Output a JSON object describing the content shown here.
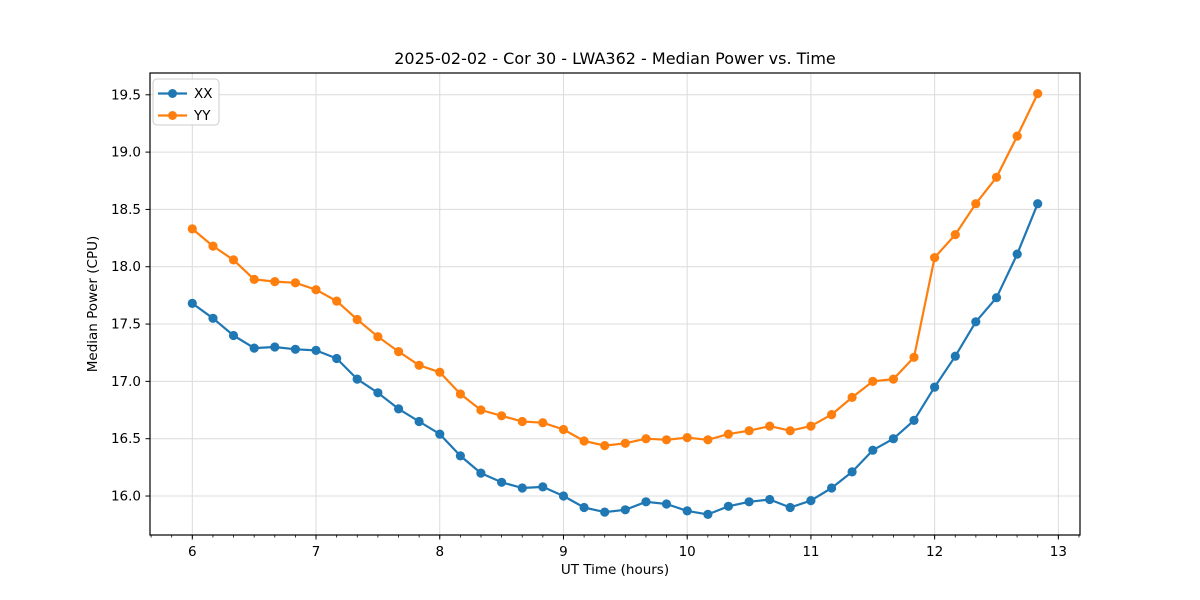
{
  "chart_data": {
    "type": "line",
    "title": "2025-02-02 - Cor 30 - LWA362 - Median Power vs. Time",
    "xlabel": "UT Time (hours)",
    "ylabel": "Median Power (CPU)",
    "xlim": [
      5.658,
      13.175
    ],
    "ylim": [
      15.66,
      19.69
    ],
    "x_major_ticks": [
      6,
      7,
      8,
      9,
      10,
      11,
      12,
      13
    ],
    "x_minor_step_hours": 0.166667,
    "y_major_ticks": [
      16.0,
      16.5,
      17.0,
      17.5,
      18.0,
      18.5,
      19.0,
      19.5
    ],
    "grid": true,
    "grid_color": "#dcdcdc",
    "legend_position": "upper left",
    "x": [
      6.0,
      6.167,
      6.333,
      6.5,
      6.667,
      6.833,
      7.0,
      7.167,
      7.333,
      7.5,
      7.667,
      7.833,
      8.0,
      8.167,
      8.333,
      8.5,
      8.667,
      8.833,
      9.0,
      9.167,
      9.333,
      9.5,
      9.667,
      9.833,
      10.0,
      10.167,
      10.333,
      10.5,
      10.667,
      10.833,
      11.0,
      11.167,
      11.333,
      11.5,
      11.667,
      11.833,
      12.0,
      12.167,
      12.333,
      12.5,
      12.667,
      12.833
    ],
    "series": [
      {
        "name": "XX",
        "color": "#1f77b4",
        "values": [
          17.68,
          17.55,
          17.4,
          17.29,
          17.3,
          17.28,
          17.27,
          17.2,
          17.02,
          16.9,
          16.76,
          16.65,
          16.54,
          16.35,
          16.2,
          16.12,
          16.07,
          16.08,
          16.0,
          15.9,
          15.86,
          15.88,
          15.95,
          15.93,
          15.87,
          15.84,
          15.91,
          15.95,
          15.97,
          15.9,
          15.96,
          16.07,
          16.21,
          16.4,
          16.5,
          16.66,
          16.95,
          17.22,
          17.52,
          17.73,
          18.11,
          18.55
        ]
      },
      {
        "name": "YY",
        "color": "#ff7f0e",
        "values": [
          18.33,
          18.18,
          18.06,
          17.89,
          17.87,
          17.86,
          17.8,
          17.7,
          17.54,
          17.39,
          17.26,
          17.14,
          17.08,
          16.89,
          16.75,
          16.7,
          16.65,
          16.64,
          16.58,
          16.48,
          16.44,
          16.46,
          16.5,
          16.49,
          16.51,
          16.49,
          16.54,
          16.57,
          16.61,
          16.57,
          16.61,
          16.71,
          16.86,
          17.0,
          17.02,
          17.21,
          18.08,
          18.28,
          18.55,
          18.78,
          19.14,
          19.51
        ]
      }
    ]
  }
}
